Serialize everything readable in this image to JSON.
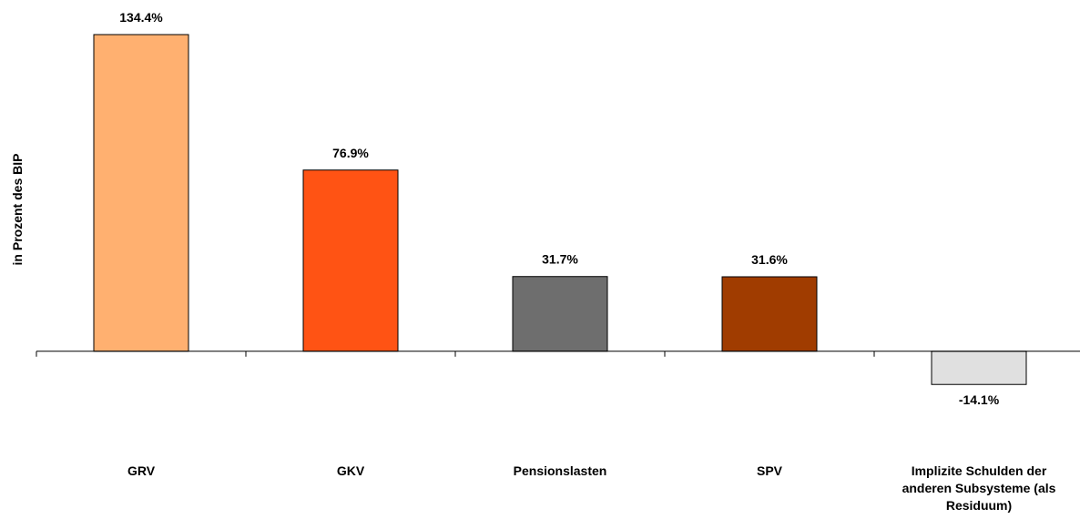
{
  "chart_data": {
    "type": "bar",
    "y_label": "in Prozent des BIP",
    "categories": [
      "GRV",
      "GKV",
      "Pensionslasten",
      "SPV",
      "Implizite Schulden der anderen Subsysteme (als Residuum)"
    ],
    "values": [
      134.4,
      76.9,
      31.7,
      31.6,
      -14.1
    ],
    "value_labels": [
      "134.4%",
      "76.9%",
      "31.7%",
      "31.6%",
      "-14.1%"
    ],
    "colors": [
      "#ffb070",
      "#ff5314",
      "#6e6e6e",
      "#a03c00",
      "#e0e0e0"
    ],
    "ylim": [
      -60,
      140
    ]
  }
}
